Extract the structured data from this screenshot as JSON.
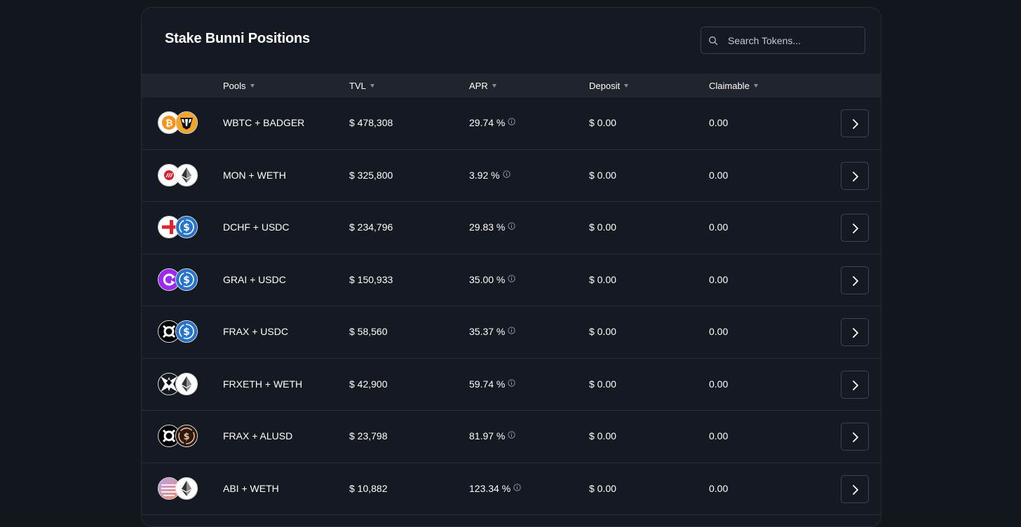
{
  "title": "Stake Bunni Positions",
  "search": {
    "placeholder": "Search Tokens...",
    "value": ""
  },
  "columns": [
    {
      "label": "Pools"
    },
    {
      "label": "TVL"
    },
    {
      "label": "APR"
    },
    {
      "label": "Deposit"
    },
    {
      "label": "Claimable"
    }
  ],
  "rows": [
    {
      "pool": "WBTC + BADGER",
      "tvl": "$ 478,308",
      "apr": "29.74 %",
      "deposit": "$ 0.00",
      "claimable": "0.00",
      "icons": [
        "wbtc-icon",
        "badger-icon"
      ]
    },
    {
      "pool": "MON + WETH",
      "tvl": "$ 325,800",
      "apr": "3.92 %",
      "deposit": "$ 0.00",
      "claimable": "0.00",
      "icons": [
        "mon-icon",
        "weth-icon"
      ]
    },
    {
      "pool": "DCHF + USDC",
      "tvl": "$ 234,796",
      "apr": "29.83 %",
      "deposit": "$ 0.00",
      "claimable": "0.00",
      "icons": [
        "dchf-icon",
        "usdc-icon"
      ]
    },
    {
      "pool": "GRAI + USDC",
      "tvl": "$ 150,933",
      "apr": "35.00 %",
      "deposit": "$ 0.00",
      "claimable": "0.00",
      "icons": [
        "grai-icon",
        "usdc-icon"
      ]
    },
    {
      "pool": "FRAX + USDC",
      "tvl": "$ 58,560",
      "apr": "35.37 %",
      "deposit": "$ 0.00",
      "claimable": "0.00",
      "icons": [
        "frax-icon",
        "usdc-icon"
      ]
    },
    {
      "pool": "FRXETH + WETH",
      "tvl": "$ 42,900",
      "apr": "59.74 %",
      "deposit": "$ 0.00",
      "claimable": "0.00",
      "icons": [
        "frxeth-icon",
        "weth-icon"
      ]
    },
    {
      "pool": "FRAX + ALUSD",
      "tvl": "$ 23,798",
      "apr": "81.97 %",
      "deposit": "$ 0.00",
      "claimable": "0.00",
      "icons": [
        "frax-icon",
        "alusd-icon"
      ]
    },
    {
      "pool": "ABI + WETH",
      "tvl": "$ 10,882",
      "apr": "123.34 %",
      "deposit": "$ 0.00",
      "claimable": "0.00",
      "icons": [
        "abi-icon",
        "weth-icon"
      ]
    }
  ],
  "colors": {
    "background": "#12161d",
    "panel": "#141922",
    "header_row": "#1f242d",
    "border": "#262b34",
    "text": "#ffffff"
  }
}
